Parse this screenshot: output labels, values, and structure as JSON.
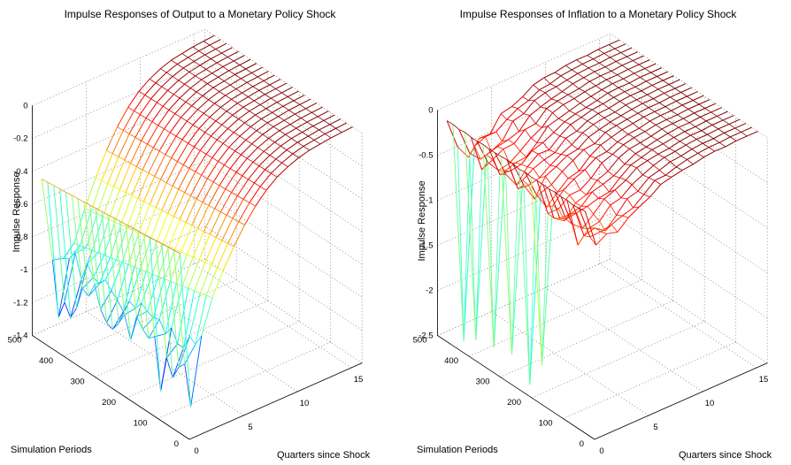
{
  "chart_data": [
    {
      "type": "surface",
      "title": "Impulse Responses of Output to a Monetary Policy Shock",
      "xlabel": "Quarters since Shock",
      "ylabel": "Simulation Periods",
      "zlabel": "Impulse Response",
      "xlim": [
        0,
        16
      ],
      "ylim": [
        0,
        500
      ],
      "zlim": [
        -1.4,
        0
      ],
      "xticks": [
        "0",
        "5",
        "10",
        "15"
      ],
      "yticks": [
        "0",
        "100",
        "200",
        "300",
        "400",
        "500"
      ],
      "zticks": [
        "0",
        "-0.2",
        "-0.4",
        "-0.6",
        "-0.8",
        "-1",
        "-1.2",
        "-1.4"
      ],
      "grid": true,
      "colormap": "jet",
      "description_values": {
        "quarters": [
          0,
          1,
          2,
          3,
          4,
          5,
          6,
          7,
          8,
          9,
          10,
          11,
          12,
          13,
          14,
          15,
          16
        ],
        "typical_response": [
          -0.36,
          -1.0,
          -0.95,
          -0.78,
          -0.62,
          -0.48,
          -0.36,
          -0.26,
          -0.18,
          -0.12,
          -0.08,
          -0.05,
          -0.03,
          -0.02,
          -0.01,
          -0.005,
          0
        ],
        "min_response": -1.35
      }
    },
    {
      "type": "surface",
      "title": "Impulse Responses of Inflation to a Monetary Policy Shock",
      "xlabel": "Quarters since Shock",
      "ylabel": "Simulation Periods",
      "zlabel": "Impulse Response",
      "xlim": [
        0,
        16
      ],
      "ylim": [
        0,
        500
      ],
      "zlim": [
        -2.5,
        0
      ],
      "xticks": [
        "0",
        "5",
        "10",
        "15"
      ],
      "yticks": [
        "0",
        "100",
        "200",
        "300",
        "400",
        "500"
      ],
      "zticks": [
        "0",
        "-0.5",
        "-1",
        "-1.5",
        "-2",
        "-2.5"
      ],
      "grid": true,
      "colormap": "jet",
      "description_values": {
        "quarters": [
          0,
          1,
          2,
          3,
          4,
          5,
          6,
          7,
          8,
          9,
          10,
          11,
          12,
          13,
          14,
          15,
          16
        ],
        "typical_response": [
          -0.05,
          -0.4,
          -0.48,
          -0.42,
          -0.34,
          -0.26,
          -0.19,
          -0.13,
          -0.09,
          -0.06,
          -0.04,
          -0.02,
          -0.01,
          -0.01,
          0,
          0,
          0
        ],
        "spike_responses": [
          -0.6,
          -2.2,
          -2.5,
          -2.3,
          -2.35,
          -2.35,
          -2.8
        ]
      }
    }
  ]
}
